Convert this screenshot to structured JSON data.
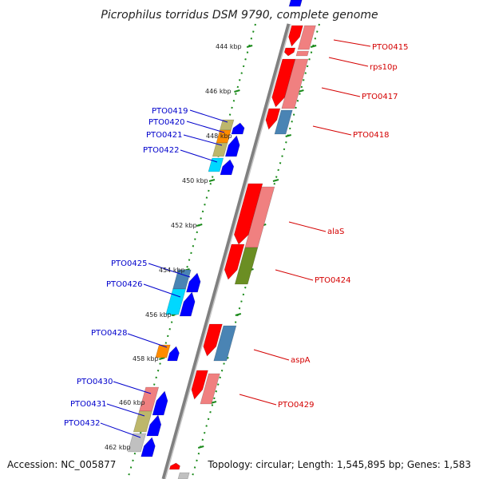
{
  "title": "Picrophilus torridus DSM 9790, complete genome",
  "footer": {
    "accession": "Accession: NC_005877",
    "topology": "Topology: circular; Length: 1,545,895 bp; Genes: 1,583"
  },
  "colors": {
    "red": "#ff0000",
    "pink": "#f08080",
    "steel": "#4a84b4",
    "olive": "#6b8e23",
    "blue": "#0000ff",
    "khaki": "#bdb76b",
    "orange": "#ff8c00",
    "cyan": "#00d8ff",
    "grey": "#c0c0c0",
    "green_tick": "#1a8a1a",
    "backbone": "#808080"
  },
  "scale_ticks": [
    "444 kbp",
    "446 kbp",
    "448 kbp",
    "450 kbp",
    "452 kbp",
    "454 kbp",
    "456 kbp",
    "458 kbp",
    "460 kbp",
    "462 kbp"
  ],
  "right_labels": [
    "PTO0415",
    "rps10p",
    "PTO0417",
    "PTO0418",
    "alaS",
    "PTO0424",
    "aspA",
    "PTO0429"
  ],
  "left_labels": [
    "PTO0419",
    "PTO0420",
    "PTO0421",
    "PTO0422",
    "PTO0425",
    "PTO0426",
    "PTO0428",
    "PTO0430",
    "PTO0431",
    "PTO0432"
  ]
}
